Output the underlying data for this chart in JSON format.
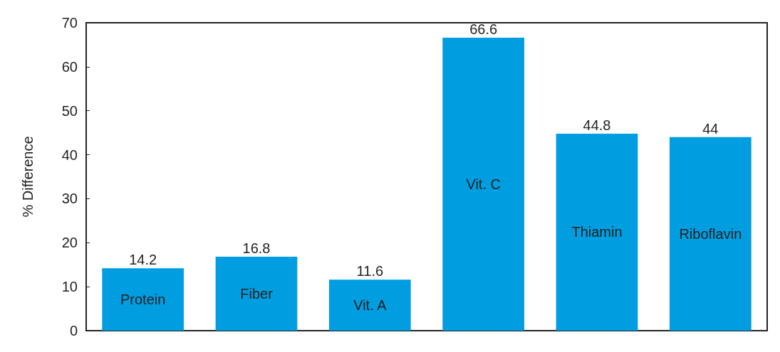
{
  "chart_data": {
    "type": "bar",
    "ylabel": "% Difference",
    "categories": [
      "Protein",
      "Fiber",
      "Vit. A",
      "Vit. C",
      "Thiamin",
      "Riboflavin"
    ],
    "values": [
      14.2,
      16.8,
      11.6,
      66.6,
      44.8,
      44
    ],
    "color": "#009ee0",
    "ylim": [
      0,
      70
    ],
    "yticks": [
      0,
      10,
      20,
      30,
      40,
      50,
      60,
      70
    ],
    "data_labels": true,
    "grid": false,
    "tick_labels": "y"
  }
}
